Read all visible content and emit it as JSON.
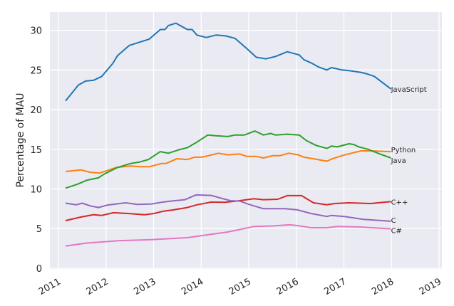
{
  "chart_data": {
    "type": "line",
    "title": "",
    "xlabel": "",
    "ylabel": "Percentage of MAU",
    "xlim": [
      2010.82,
      2019.06
    ],
    "ylim": [
      -0.1,
      32.3
    ],
    "xticks": [
      2011,
      2012,
      2013,
      2014,
      2015,
      2016,
      2017,
      2018,
      2019
    ],
    "yticks": [
      0,
      5,
      10,
      15,
      20,
      25,
      30
    ],
    "grid": true,
    "background": "#eaeaf2",
    "legend": "none (series labeled at line ends)",
    "series": [
      {
        "name": "JavaScript",
        "color": "#1f77b4",
        "x": [
          2011.15,
          2011.42,
          2011.57,
          2011.74,
          2011.91,
          2012.14,
          2012.24,
          2012.49,
          2012.81,
          2012.91,
          2013.14,
          2013.24,
          2013.31,
          2013.47,
          2013.71,
          2013.81,
          2013.91,
          2014.11,
          2014.31,
          2014.51,
          2014.71,
          2014.96,
          2015.16,
          2015.36,
          2015.56,
          2015.81,
          2016.06,
          2016.16,
          2016.31,
          2016.46,
          2016.64,
          2016.74,
          2016.96,
          2017.14,
          2017.36,
          2017.49,
          2017.64,
          2017.99
        ],
        "y": [
          21.1,
          23.1,
          23.6,
          23.7,
          24.2,
          25.8,
          26.8,
          28.1,
          28.7,
          28.9,
          30.1,
          30.1,
          30.6,
          30.9,
          30.1,
          30.1,
          29.4,
          29.1,
          29.4,
          29.3,
          29.0,
          27.7,
          26.6,
          26.4,
          26.7,
          27.3,
          26.9,
          26.3,
          25.9,
          25.4,
          25.0,
          25.3,
          25.0,
          24.9,
          24.7,
          24.5,
          24.2,
          22.6
        ]
      },
      {
        "name": "Python",
        "color": "#ff7f0e",
        "x": [
          2011.15,
          2011.47,
          2011.67,
          2011.87,
          2012.21,
          2012.51,
          2012.71,
          2012.91,
          2013.16,
          2013.26,
          2013.49,
          2013.71,
          2013.86,
          2014.01,
          2014.16,
          2014.36,
          2014.56,
          2014.81,
          2014.96,
          2015.16,
          2015.31,
          2015.51,
          2015.66,
          2015.84,
          2016.04,
          2016.16,
          2016.36,
          2016.64,
          2016.76,
          2016.96,
          2017.16,
          2017.36,
          2017.56,
          2017.99
        ],
        "y": [
          12.2,
          12.4,
          12.1,
          12.0,
          12.7,
          12.9,
          12.8,
          12.8,
          13.2,
          13.2,
          13.8,
          13.7,
          14.0,
          14.0,
          14.2,
          14.5,
          14.3,
          14.4,
          14.1,
          14.1,
          13.9,
          14.2,
          14.2,
          14.5,
          14.3,
          14.0,
          13.8,
          13.5,
          13.8,
          14.2,
          14.5,
          14.8,
          14.8,
          14.7
        ]
      },
      {
        "name": "Java",
        "color": "#2ca02c",
        "x": [
          2011.15,
          2011.4,
          2011.6,
          2011.84,
          2011.97,
          2012.24,
          2012.51,
          2012.71,
          2012.89,
          2013.14,
          2013.31,
          2013.51,
          2013.71,
          2013.91,
          2014.14,
          2014.31,
          2014.56,
          2014.71,
          2014.91,
          2015.13,
          2015.31,
          2015.46,
          2015.56,
          2015.81,
          2016.06,
          2016.21,
          2016.41,
          2016.64,
          2016.74,
          2016.86,
          2017.11,
          2017.21,
          2017.31,
          2017.51,
          2017.76,
          2017.99
        ],
        "y": [
          10.1,
          10.6,
          11.1,
          11.4,
          11.9,
          12.7,
          13.2,
          13.4,
          13.7,
          14.7,
          14.5,
          14.9,
          15.2,
          15.9,
          16.8,
          16.7,
          16.6,
          16.8,
          16.8,
          17.3,
          16.8,
          17.0,
          16.8,
          16.9,
          16.8,
          16.1,
          15.5,
          15.1,
          15.4,
          15.3,
          15.7,
          15.6,
          15.3,
          15.0,
          14.4,
          13.9
        ]
      },
      {
        "name": "C++",
        "color": "#d62728",
        "x": [
          2011.15,
          2011.47,
          2011.74,
          2011.91,
          2012.16,
          2012.46,
          2012.81,
          2013.01,
          2013.21,
          2013.41,
          2013.71,
          2013.91,
          2014.21,
          2014.51,
          2014.81,
          2015.11,
          2015.31,
          2015.61,
          2015.81,
          2016.11,
          2016.36,
          2016.64,
          2016.81,
          2017.11,
          2017.56,
          2017.99
        ],
        "y": [
          6.0,
          6.45,
          6.75,
          6.66,
          7.0,
          6.9,
          6.75,
          6.9,
          7.2,
          7.35,
          7.65,
          8.0,
          8.34,
          8.31,
          8.52,
          8.76,
          8.64,
          8.7,
          9.15,
          9.15,
          8.25,
          8.0,
          8.16,
          8.25,
          8.16,
          8.4
        ]
      },
      {
        "name": "C",
        "color": "#9467bd",
        "x": [
          2011.15,
          2011.37,
          2011.5,
          2011.67,
          2011.84,
          2012.02,
          2012.41,
          2012.66,
          2012.96,
          2013.16,
          2013.41,
          2013.66,
          2013.89,
          2014.21,
          2014.41,
          2014.61,
          2014.81,
          2015.01,
          2015.31,
          2015.76,
          2016.01,
          2016.31,
          2016.64,
          2016.74,
          2017.01,
          2017.41,
          2017.99
        ],
        "y": [
          8.2,
          8.0,
          8.2,
          7.86,
          7.65,
          7.95,
          8.25,
          8.04,
          8.1,
          8.31,
          8.49,
          8.64,
          9.24,
          9.18,
          8.85,
          8.52,
          8.46,
          8.04,
          7.5,
          7.5,
          7.38,
          6.9,
          6.52,
          6.66,
          6.52,
          6.16,
          5.92
        ]
      },
      {
        "name": "C#",
        "color": "#e377c2",
        "x": [
          2011.15,
          2011.57,
          2011.91,
          2012.26,
          2012.96,
          2013.71,
          2014.21,
          2014.56,
          2015.11,
          2015.56,
          2015.86,
          2016.06,
          2016.31,
          2016.64,
          2016.86,
          2017.31,
          2017.99
        ],
        "y": [
          2.8,
          3.16,
          3.31,
          3.46,
          3.61,
          3.85,
          4.27,
          4.57,
          5.26,
          5.35,
          5.47,
          5.35,
          5.11,
          5.11,
          5.26,
          5.2,
          4.96
        ]
      }
    ]
  }
}
